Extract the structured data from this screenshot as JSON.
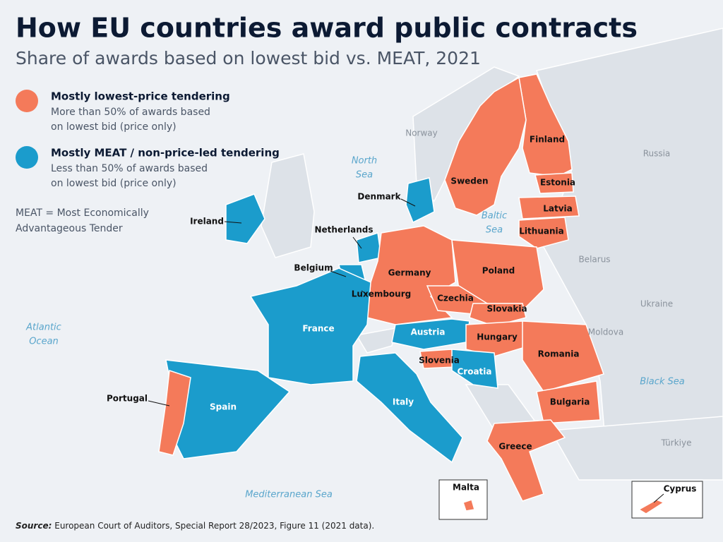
{
  "title": "How EU countries award public contracts",
  "subtitle": "Share of awards based on lowest bid vs. MEAT, 2021",
  "legend": [
    {
      "label": "Mostly lowest-price tendering",
      "description_lines": [
        "More than 50% of awards based",
        "on lowest bid (price only)"
      ],
      "color": "#f47a5a"
    },
    {
      "label": "Mostly MEAT / non-price-led tendering",
      "description_lines": [
        "Less than 50% of awards based",
        "on lowest bid (price only)"
      ],
      "color": "#1b9ccc"
    }
  ],
  "note_lines": [
    "MEAT = Most Economically",
    "Advantageous Tender"
  ],
  "countries": [
    {
      "name": "Finland",
      "group": 0
    },
    {
      "name": "Sweden",
      "group": 0
    },
    {
      "name": "Estonia",
      "group": 0
    },
    {
      "name": "Latvia",
      "group": 0
    },
    {
      "name": "Lithuania",
      "group": 0
    },
    {
      "name": "Denmark",
      "group": 1
    },
    {
      "name": "Ireland",
      "group": 1
    },
    {
      "name": "Netherlands",
      "group": 1
    },
    {
      "name": "Belgium",
      "group": 1
    },
    {
      "name": "Luxembourg",
      "group": 0
    },
    {
      "name": "Germany",
      "group": 0
    },
    {
      "name": "Poland",
      "group": 0
    },
    {
      "name": "Czechia",
      "group": 0
    },
    {
      "name": "Slovakia",
      "group": 0
    },
    {
      "name": "Austria",
      "group": 1
    },
    {
      "name": "Hungary",
      "group": 0
    },
    {
      "name": "Slovenia",
      "group": 0
    },
    {
      "name": "Croatia",
      "group": 1
    },
    {
      "name": "Romania",
      "group": 0
    },
    {
      "name": "Bulgaria",
      "group": 0
    },
    {
      "name": "Greece",
      "group": 0
    },
    {
      "name": "France",
      "group": 1
    },
    {
      "name": "Spain",
      "group": 1
    },
    {
      "name": "Portugal",
      "group": 0
    },
    {
      "name": "Italy",
      "group": 1
    },
    {
      "name": "Malta",
      "group": 0
    },
    {
      "name": "Cyprus",
      "group": 0
    }
  ],
  "other_labels": [
    "Norway",
    "Russia",
    "Belarus",
    "Ukraine",
    "Moldova",
    "Türkiye"
  ],
  "sea_labels": [
    [
      "North",
      "Sea"
    ],
    [
      "Baltic",
      "Sea"
    ],
    [
      "Atlantic",
      "Ocean"
    ],
    [
      "Black Sea"
    ],
    [
      "Mediterranean Sea"
    ]
  ],
  "source": {
    "label": "Source:",
    "text": "European Court of Auditors, Special Report 28/2023, Figure 11 (2021 data)."
  }
}
